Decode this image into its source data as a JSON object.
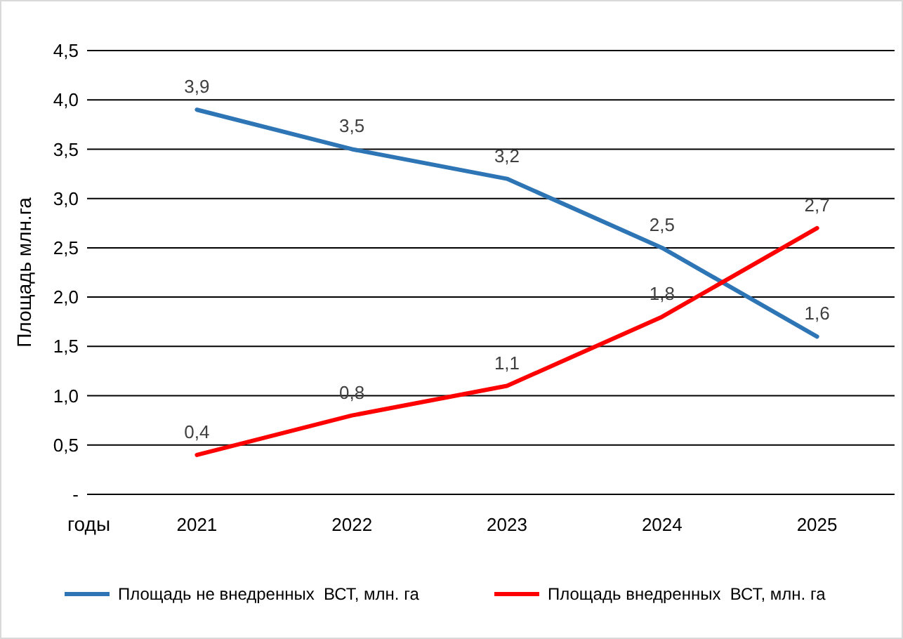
{
  "chart_data": {
    "type": "line",
    "ylabel": "Площадь млн.га",
    "xlabel": "годы",
    "categories": [
      "2021",
      "2022",
      "2023",
      "2024",
      "2025"
    ],
    "series": [
      {
        "name": "Площадь не внедренных  ВСТ, млн. га",
        "color": "#2e75b6",
        "values": [
          3.9,
          3.5,
          3.2,
          2.5,
          1.6
        ],
        "value_labels": [
          "3,9",
          "3,5",
          "3,2",
          "2,5",
          "1,6"
        ]
      },
      {
        "name": "Площадь внедренных  ВСТ, млн. га",
        "color": "#ff0000",
        "values": [
          0.4,
          0.8,
          1.1,
          1.8,
          2.7
        ],
        "value_labels": [
          "0,4",
          "0,8",
          "1,1",
          "1,8",
          "2,7"
        ]
      }
    ],
    "ylim": [
      0,
      4.5
    ],
    "yticks": [
      {
        "value": 0,
        "label": "-"
      },
      {
        "value": 0.5,
        "label": "0,5"
      },
      {
        "value": 1,
        "label": "1,0"
      },
      {
        "value": 1.5,
        "label": "1,5"
      },
      {
        "value": 2,
        "label": "2,0"
      },
      {
        "value": 2.5,
        "label": "2,5"
      },
      {
        "value": 3,
        "label": "3,0"
      },
      {
        "value": 3.5,
        "label": "3,5"
      },
      {
        "value": 4,
        "label": "4,0"
      },
      {
        "value": 4.5,
        "label": "4,5"
      }
    ],
    "grid": "y",
    "legend": "bottom",
    "marker": "none",
    "line_style": "solid"
  }
}
